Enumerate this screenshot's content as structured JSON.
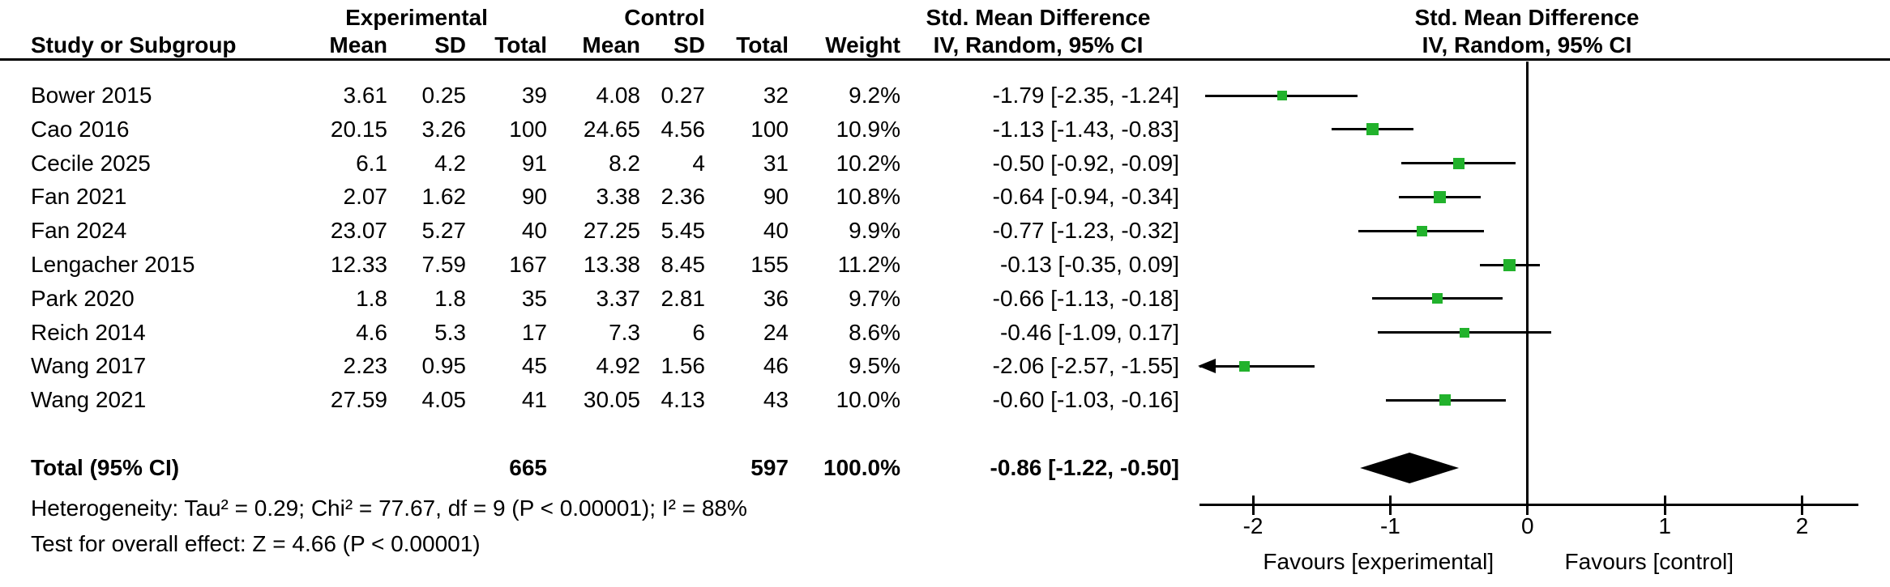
{
  "header": {
    "group_experimental": "Experimental",
    "group_control": "Control",
    "smd_title": "Std. Mean Difference",
    "smd_subtitle": "IV, Random, 95% CI",
    "col_study": "Study or Subgroup",
    "col_mean": "Mean",
    "col_sd": "SD",
    "col_total": "Total",
    "col_weight": "Weight"
  },
  "total_row": {
    "label": "Total (95% CI)",
    "exp_total": "665",
    "ctl_total": "597",
    "weight": "100.0%",
    "ci_text": "-0.86 [-1.22, -0.50]",
    "smd": -0.86,
    "ci_low": -1.22,
    "ci_high": -0.5
  },
  "footer": {
    "heterogeneity": "Heterogeneity: Tau² = 0.29; Chi² = 77.67, df = 9 (P < 0.00001); I² = 88%",
    "overall_effect": "Test for overall effect: Z = 4.66 (P < 0.00001)"
  },
  "chart_data": {
    "type": "forest",
    "title": "Std. Mean Difference, IV, Random, 95% CI",
    "marker_color": "#22b22c",
    "axis": {
      "min": -2.39,
      "max": 2.41,
      "tick_values": [
        -2,
        -1,
        0,
        1,
        2
      ],
      "tick_labels": [
        "-2",
        "-1",
        "0",
        "1",
        "2"
      ],
      "favours_left": "Favours [experimental]",
      "favours_right": "Favours [control]"
    },
    "studies": [
      {
        "name": "Bower 2015",
        "exp_mean": "3.61",
        "exp_sd": "0.25",
        "exp_total": "39",
        "ctl_mean": "4.08",
        "ctl_sd": "0.27",
        "ctl_total": "32",
        "weight": "9.2%",
        "weight_pct": 9.2,
        "ci_text": "-1.79 [-2.35, -1.24]",
        "smd": -1.79,
        "ci_low": -2.35,
        "ci_high": -1.24
      },
      {
        "name": "Cao 2016",
        "exp_mean": "20.15",
        "exp_sd": "3.26",
        "exp_total": "100",
        "ctl_mean": "24.65",
        "ctl_sd": "4.56",
        "ctl_total": "100",
        "weight": "10.9%",
        "weight_pct": 10.9,
        "ci_text": "-1.13 [-1.43, -0.83]",
        "smd": -1.13,
        "ci_low": -1.43,
        "ci_high": -0.83
      },
      {
        "name": "Cecile 2025",
        "exp_mean": "6.1",
        "exp_sd": "4.2",
        "exp_total": "91",
        "ctl_mean": "8.2",
        "ctl_sd": "4",
        "ctl_total": "31",
        "weight": "10.2%",
        "weight_pct": 10.2,
        "ci_text": "-0.50 [-0.92, -0.09]",
        "smd": -0.5,
        "ci_low": -0.92,
        "ci_high": -0.09
      },
      {
        "name": "Fan 2021",
        "exp_mean": "2.07",
        "exp_sd": "1.62",
        "exp_total": "90",
        "ctl_mean": "3.38",
        "ctl_sd": "2.36",
        "ctl_total": "90",
        "weight": "10.8%",
        "weight_pct": 10.8,
        "ci_text": "-0.64 [-0.94, -0.34]",
        "smd": -0.64,
        "ci_low": -0.94,
        "ci_high": -0.34
      },
      {
        "name": "Fan 2024",
        "exp_mean": "23.07",
        "exp_sd": "5.27",
        "exp_total": "40",
        "ctl_mean": "27.25",
        "ctl_sd": "5.45",
        "ctl_total": "40",
        "weight": "9.9%",
        "weight_pct": 9.9,
        "ci_text": "-0.77 [-1.23, -0.32]",
        "smd": -0.77,
        "ci_low": -1.23,
        "ci_high": -0.32
      },
      {
        "name": "Lengacher 2015",
        "exp_mean": "12.33",
        "exp_sd": "7.59",
        "exp_total": "167",
        "ctl_mean": "13.38",
        "ctl_sd": "8.45",
        "ctl_total": "155",
        "weight": "11.2%",
        "weight_pct": 11.2,
        "ci_text": "-0.13 [-0.35, 0.09]",
        "smd": -0.13,
        "ci_low": -0.35,
        "ci_high": 0.09
      },
      {
        "name": "Park 2020",
        "exp_mean": "1.8",
        "exp_sd": "1.8",
        "exp_total": "35",
        "ctl_mean": "3.37",
        "ctl_sd": "2.81",
        "ctl_total": "36",
        "weight": "9.7%",
        "weight_pct": 9.7,
        "ci_text": "-0.66 [-1.13, -0.18]",
        "smd": -0.66,
        "ci_low": -1.13,
        "ci_high": -0.18
      },
      {
        "name": "Reich 2014",
        "exp_mean": "4.6",
        "exp_sd": "5.3",
        "exp_total": "17",
        "ctl_mean": "7.3",
        "ctl_sd": "6",
        "ctl_total": "24",
        "weight": "8.6%",
        "weight_pct": 8.6,
        "ci_text": "-0.46 [-1.09, 0.17]",
        "smd": -0.46,
        "ci_low": -1.09,
        "ci_high": 0.17
      },
      {
        "name": "Wang 2017",
        "exp_mean": "2.23",
        "exp_sd": "0.95",
        "exp_total": "45",
        "ctl_mean": "4.92",
        "ctl_sd": "1.56",
        "ctl_total": "46",
        "weight": "9.5%",
        "weight_pct": 9.5,
        "ci_text": "-2.06 [-2.57, -1.55]",
        "smd": -2.06,
        "ci_low": -2.57,
        "ci_high": -1.55
      },
      {
        "name": "Wang 2021",
        "exp_mean": "27.59",
        "exp_sd": "4.05",
        "exp_total": "41",
        "ctl_mean": "30.05",
        "ctl_sd": "4.13",
        "ctl_total": "43",
        "weight": "10.0%",
        "weight_pct": 10.0,
        "ci_text": "-0.60 [-1.03, -0.16]",
        "smd": -0.6,
        "ci_low": -1.03,
        "ci_high": -0.16
      }
    ]
  }
}
